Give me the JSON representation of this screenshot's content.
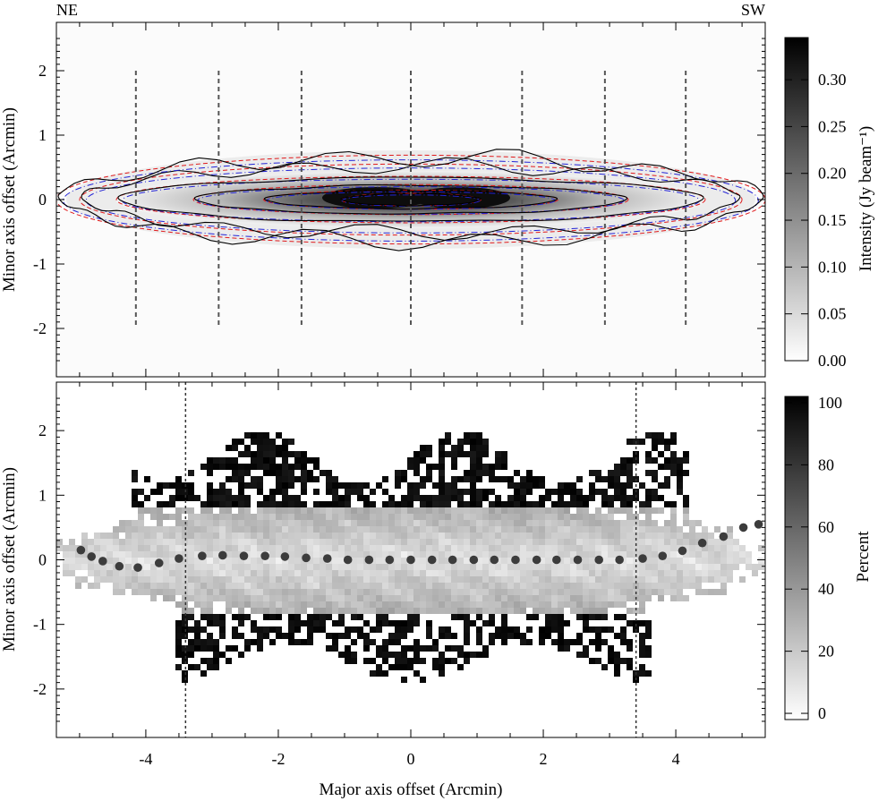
{
  "chart_data": [
    {
      "type": "heatmap",
      "description_panel": "top",
      "orientation_labels": {
        "left": "NE",
        "right": "SW"
      },
      "xlim": [
        -5.35,
        5.35
      ],
      "ylim": [
        -2.75,
        2.75
      ],
      "xticks": [
        -4,
        -2,
        0,
        2,
        4
      ],
      "yticks": [
        -2,
        -1,
        0,
        1,
        2
      ],
      "ylabel": "Minor axis offset (Arcmin)",
      "colorbar": {
        "label": "Intensity (Jy beam⁻¹)",
        "range": [
          0.0,
          0.345
        ],
        "ticks": [
          "0.00",
          "0.05",
          "0.10",
          "0.15",
          "0.20",
          "0.25",
          "0.30"
        ],
        "tick_values": [
          0.0,
          0.05,
          0.1,
          0.15,
          0.2,
          0.25,
          0.3
        ]
      },
      "cut_lines_x": [
        -4.15,
        -2.9,
        -1.65,
        0.0,
        1.68,
        2.93,
        4.15
      ],
      "cut_lines_y_range": [
        -2.0,
        2.0
      ],
      "contours": {
        "observed_colour": "#000000",
        "model_a_colour": "#e0191b",
        "model_b_colour": "#2323d6",
        "levels_semi_axes": [
          {
            "a": 1.05,
            "b": 0.09
          },
          {
            "a": 2.2,
            "b": 0.14
          },
          {
            "a": 3.25,
            "b": 0.22
          },
          {
            "a": 4.4,
            "b": 0.34
          },
          {
            "a": 4.95,
            "b": 0.52
          },
          {
            "a": 5.3,
            "b": 0.65
          }
        ]
      }
    },
    {
      "type": "heatmap",
      "description_panel": "bottom",
      "xlim": [
        -5.35,
        5.35
      ],
      "ylim": [
        -2.75,
        2.75
      ],
      "xticks": [
        -4,
        -2,
        0,
        2,
        4
      ],
      "yticks": [
        -2,
        -1,
        0,
        1,
        2
      ],
      "xlabel": "Major axis offset (Arcmin)",
      "ylabel": "Minor axis offset (Arcmin)",
      "colorbar": {
        "label": "Percent",
        "range": [
          -2,
          102
        ],
        "ticks": [
          "0",
          "20",
          "40",
          "60",
          "80",
          "100"
        ],
        "tick_values": [
          0,
          20,
          40,
          60,
          80,
          100
        ]
      },
      "cut_lines_x": [
        -3.4,
        3.4
      ],
      "ridge_points": [
        {
          "x": -4.98,
          "y": 0.15
        },
        {
          "x": -4.82,
          "y": 0.05
        },
        {
          "x": -4.65,
          "y": -0.02
        },
        {
          "x": -4.4,
          "y": -0.1
        },
        {
          "x": -4.12,
          "y": -0.12
        },
        {
          "x": -3.8,
          "y": -0.05
        },
        {
          "x": -3.5,
          "y": 0.02
        },
        {
          "x": -3.15,
          "y": 0.06
        },
        {
          "x": -2.84,
          "y": 0.07
        },
        {
          "x": -2.52,
          "y": 0.06
        },
        {
          "x": -2.2,
          "y": 0.06
        },
        {
          "x": -1.9,
          "y": 0.05
        },
        {
          "x": -1.58,
          "y": 0.03
        },
        {
          "x": -1.26,
          "y": 0.02
        },
        {
          "x": -0.95,
          "y": 0.0
        },
        {
          "x": -0.63,
          "y": 0.0
        },
        {
          "x": -0.32,
          "y": 0.0
        },
        {
          "x": 0.0,
          "y": 0.0
        },
        {
          "x": 0.32,
          "y": 0.0
        },
        {
          "x": 0.63,
          "y": 0.0
        },
        {
          "x": 0.95,
          "y": 0.0
        },
        {
          "x": 1.26,
          "y": 0.0
        },
        {
          "x": 1.58,
          "y": 0.0
        },
        {
          "x": 1.9,
          "y": 0.0
        },
        {
          "x": 2.2,
          "y": 0.0
        },
        {
          "x": 2.52,
          "y": 0.0
        },
        {
          "x": 2.84,
          "y": 0.0
        },
        {
          "x": 3.15,
          "y": 0.0
        },
        {
          "x": 3.5,
          "y": 0.02
        },
        {
          "x": 3.8,
          "y": 0.06
        },
        {
          "x": 4.1,
          "y": 0.14
        },
        {
          "x": 4.4,
          "y": 0.26
        },
        {
          "x": 4.72,
          "y": 0.36
        },
        {
          "x": 5.02,
          "y": 0.5
        },
        {
          "x": 5.25,
          "y": 0.55
        }
      ]
    }
  ]
}
